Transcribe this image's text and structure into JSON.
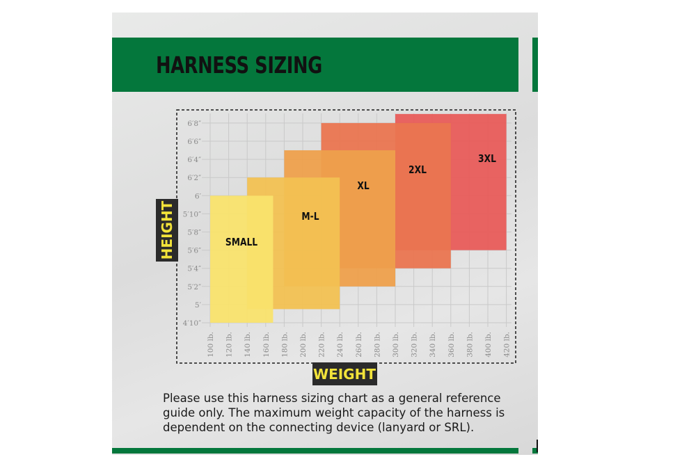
{
  "page": {
    "title": "HARNESS SIZING",
    "caption": "Please use this harness sizing chart as a general reference guide only. The maximum weight capacity of the harness is dependent on the connecting device (lanyard or SRL).",
    "brand_green": "#04773c"
  },
  "chart_data": {
    "type": "range-rectangles",
    "title": "HARNESS SIZING",
    "xlabel": "WEIGHT",
    "ylabel": "HEIGHT",
    "x_unit": "lb.",
    "y_unit": "inches",
    "xlim": [
      90,
      430
    ],
    "ylim": [
      57,
      81
    ],
    "x_ticks": [
      100,
      120,
      140,
      160,
      180,
      200,
      220,
      240,
      260,
      280,
      300,
      320,
      340,
      360,
      380,
      400,
      420
    ],
    "x_tick_labels": [
      "100 lb.",
      "120 lb.",
      "140 lb.",
      "160 lb.",
      "180 lb.",
      "200 lb.",
      "220 lb.",
      "240 lb.",
      "260 lb.",
      "280 lb.",
      "300 lb.",
      "320 lb.",
      "340 lb.",
      "360 lb.",
      "380 lb.",
      "400 lb.",
      "420 lb."
    ],
    "y_ticks": [
      58,
      60,
      62,
      64,
      66,
      68,
      70,
      72,
      74,
      76,
      78,
      80
    ],
    "y_tick_labels": [
      "4′10″",
      "5′",
      "5′2″",
      "5′4″",
      "5′6″",
      "5′8″",
      "5′10″",
      "6′",
      "6′2″",
      "6′4″",
      "6′6″",
      "6′8″"
    ],
    "grid": true,
    "sizes": [
      {
        "name": "3XL",
        "weight": [
          300,
          420
        ],
        "height": [
          66,
          81
        ],
        "color": "#e85c5a"
      },
      {
        "name": "2XL",
        "weight": [
          220,
          360
        ],
        "height": [
          64,
          80
        ],
        "color": "#ea7550"
      },
      {
        "name": "XL",
        "weight": [
          180,
          300
        ],
        "height": [
          62,
          77
        ],
        "color": "#eea04c"
      },
      {
        "name": "M-L",
        "weight": [
          140,
          240
        ],
        "height": [
          59.5,
          74
        ],
        "color": "#f2c152"
      },
      {
        "name": "SMALL",
        "weight": [
          100,
          168
        ],
        "height": [
          58,
          72
        ],
        "color": "#f9e36d"
      }
    ]
  }
}
